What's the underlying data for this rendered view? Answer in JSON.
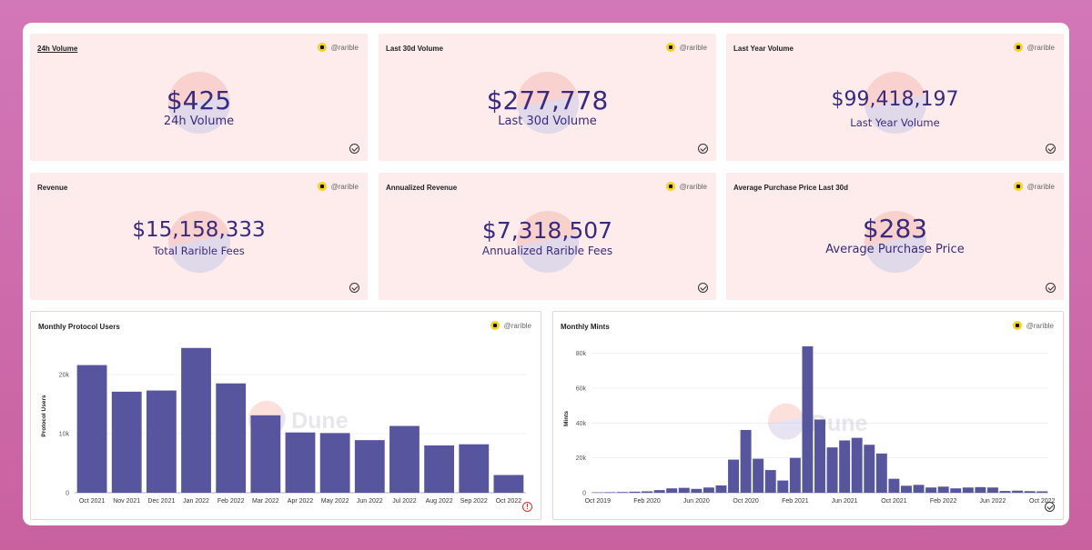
{
  "kpis": [
    {
      "title": "24h Volume",
      "author": "@rarible",
      "value": "$425",
      "subtitle": "24h Volume"
    },
    {
      "title": "Last 30d Volume",
      "author": "@rarible",
      "value": "$277,778",
      "subtitle": "Last 30d Volume"
    },
    {
      "title": "Last Year Volume",
      "author": "@rarible",
      "value": "$99,418,197",
      "subtitle": "Last Year Volume"
    },
    {
      "title": "Revenue",
      "author": "@rarible",
      "value": "$15,158,333",
      "subtitle": "Total Rarible Fees"
    },
    {
      "title": "Annualized Revenue",
      "author": "@rarible",
      "value": "$7,318,507",
      "subtitle": "Annualized Rarible Fees"
    },
    {
      "title": "Average Purchase Price Last 30d",
      "author": "@rarible",
      "value": "$283",
      "subtitle": "Average Purchase Price"
    }
  ],
  "watermark": "Dune",
  "colors": {
    "bar": "#56559e",
    "kpi_bg": "#fdeceb",
    "text": "#3a2a7d"
  },
  "chart_data": [
    {
      "type": "bar",
      "title": "Monthly Protocol Users",
      "author": "@rarible",
      "ylabel": "Protocol Users",
      "xlabel": "",
      "ylim": [
        0,
        26000
      ],
      "yticks": [
        0,
        10000,
        20000
      ],
      "ytick_labels": [
        "0",
        "10k",
        "20k"
      ],
      "categories": [
        "Oct 2021",
        "Nov 2021",
        "Dec 2021",
        "Jan 2022",
        "Feb 2022",
        "Mar 2022",
        "Apr 2022",
        "May 2022",
        "Jun 2022",
        "Jul 2022",
        "Aug 2022",
        "Sep 2022",
        "Oct 2022"
      ],
      "values": [
        21600,
        17100,
        17300,
        24500,
        18500,
        13100,
        10200,
        10100,
        8900,
        11300,
        8000,
        8200,
        3000
      ]
    },
    {
      "type": "bar",
      "title": "Monthly Mints",
      "author": "@rarible",
      "ylabel": "Mints",
      "xlabel": "",
      "ylim": [
        0,
        85000
      ],
      "yticks": [
        0,
        20000,
        40000,
        60000,
        80000
      ],
      "ytick_labels": [
        "0",
        "20k",
        "40k",
        "60k",
        "80k"
      ],
      "tick_labels": [
        "Oct 2019",
        "Feb 2020",
        "Jun 2020",
        "Oct 2020",
        "Feb 2021",
        "Jun 2021",
        "Oct 2021",
        "Feb 2022",
        "Jun 2022",
        "Oct 2022"
      ],
      "categories": [
        "Oct 2019",
        "Nov 2019",
        "Dec 2019",
        "Jan 2020",
        "Feb 2020",
        "Mar 2020",
        "Apr 2020",
        "May 2020",
        "Jun 2020",
        "Jul 2020",
        "Aug 2020",
        "Sep 2020",
        "Oct 2020",
        "Nov 2020",
        "Dec 2020",
        "Jan 2021",
        "Feb 2021",
        "Mar 2021",
        "Apr 2021",
        "May 2021",
        "Jun 2021",
        "Jul 2021",
        "Aug 2021",
        "Sep 2021",
        "Oct 2021",
        "Nov 2021",
        "Dec 2021",
        "Jan 2022",
        "Feb 2022",
        "Mar 2022",
        "Apr 2022",
        "May 2022",
        "Jun 2022",
        "Jul 2022",
        "Aug 2022",
        "Sep 2022",
        "Oct 2022"
      ],
      "values": [
        200,
        300,
        400,
        600,
        800,
        1500,
        2500,
        2800,
        2200,
        3000,
        4200,
        19000,
        36000,
        19500,
        13000,
        7000,
        20000,
        84000,
        42000,
        26000,
        30000,
        31500,
        27500,
        22500,
        8000,
        4000,
        4500,
        3000,
        3500,
        2500,
        3000,
        3200,
        3000,
        1000,
        1200,
        900,
        800
      ]
    }
  ]
}
